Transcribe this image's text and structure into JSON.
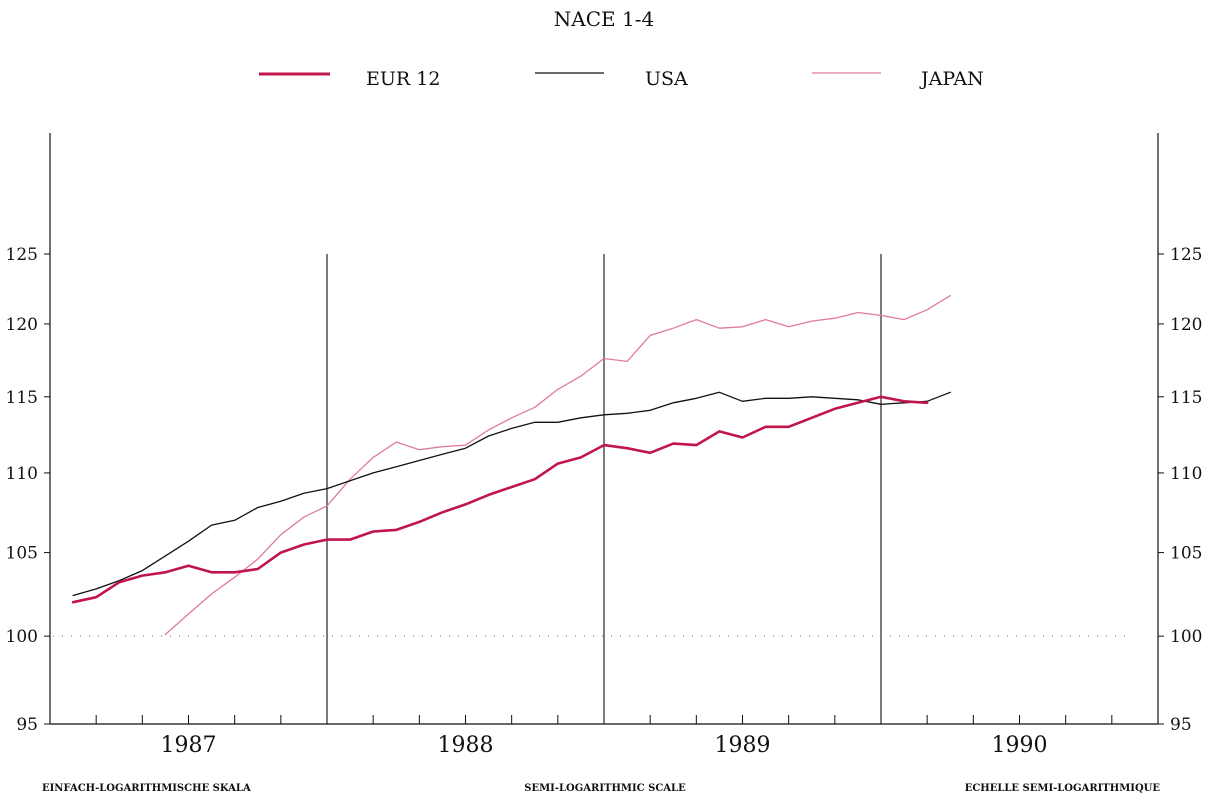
{
  "title": "NACE 1-4",
  "legend": [
    {
      "label": "EUR 12",
      "color": "#c0164a"
    },
    {
      "label": "USA",
      "color": "#111111"
    },
    {
      "label": "JAPAN",
      "color": "#e07aa0"
    }
  ],
  "footer": {
    "left": "EINFACH-LOGARITHMISCHE SKALA",
    "center": "SEMI-LOGARITHMIC SCALE",
    "right": "ECHELLE SEMI-LOGARITHMIQUE"
  },
  "chart_data": {
    "type": "line",
    "title": "NACE 1-4",
    "y_scale": "log",
    "ylim": [
      95,
      130
    ],
    "yticks": [
      95,
      100,
      105,
      110,
      115,
      120,
      125
    ],
    "xlim": [
      "1986-12",
      "1990-12"
    ],
    "year_labels": [
      "1987",
      "1988",
      "1989",
      "1990"
    ],
    "reference_line": {
      "y": 100,
      "style": "dotted"
    },
    "x": [
      "1987-01",
      "1987-02",
      "1987-03",
      "1987-04",
      "1987-05",
      "1987-06",
      "1987-07",
      "1987-08",
      "1987-09",
      "1987-10",
      "1987-11",
      "1987-12",
      "1988-01",
      "1988-02",
      "1988-03",
      "1988-04",
      "1988-05",
      "1988-06",
      "1988-07",
      "1988-08",
      "1988-09",
      "1988-10",
      "1988-11",
      "1988-12",
      "1989-01",
      "1989-02",
      "1989-03",
      "1989-04",
      "1989-05",
      "1989-06",
      "1989-07",
      "1989-08",
      "1989-09",
      "1989-10",
      "1989-11",
      "1989-12",
      "1990-01",
      "1990-02",
      "1990-03"
    ],
    "series": [
      {
        "name": "EUR 12",
        "color": "#c0164a",
        "values": [
          102.0,
          102.3,
          103.2,
          103.6,
          103.8,
          104.2,
          103.8,
          103.8,
          104.0,
          105.0,
          105.5,
          105.8,
          105.8,
          106.3,
          106.4,
          106.9,
          107.5,
          108.0,
          108.6,
          109.1,
          109.6,
          110.6,
          111.0,
          111.8,
          111.6,
          111.3,
          111.9,
          111.8,
          112.7,
          112.3,
          113.0,
          113.0,
          113.6,
          114.2,
          114.6,
          115.0,
          114.7,
          114.6,
          null
        ]
      },
      {
        "name": "USA",
        "color": "#111111",
        "values": [
          102.4,
          102.8,
          103.3,
          103.9,
          104.8,
          105.7,
          106.7,
          107.0,
          107.8,
          108.2,
          108.7,
          109.0,
          109.5,
          110.0,
          110.4,
          110.8,
          111.2,
          111.6,
          112.4,
          112.9,
          113.3,
          113.3,
          113.6,
          113.8,
          113.9,
          114.1,
          114.6,
          114.9,
          115.3,
          114.7,
          114.9,
          114.9,
          115.0,
          114.9,
          114.8,
          114.5,
          114.6,
          114.7,
          115.3
        ]
      },
      {
        "name": "JAPAN",
        "color": "#e07aa0",
        "values": [
          null,
          null,
          null,
          null,
          100.1,
          101.3,
          102.5,
          103.5,
          104.6,
          106.1,
          107.2,
          107.9,
          109.6,
          111.0,
          112.0,
          111.5,
          111.7,
          111.8,
          112.8,
          113.6,
          114.3,
          115.5,
          116.4,
          117.6,
          117.4,
          119.2,
          119.7,
          120.3,
          119.7,
          119.8,
          120.3,
          119.8,
          120.2,
          120.4,
          120.8,
          120.6,
          120.3,
          121.0,
          122.0
        ]
      }
    ]
  }
}
